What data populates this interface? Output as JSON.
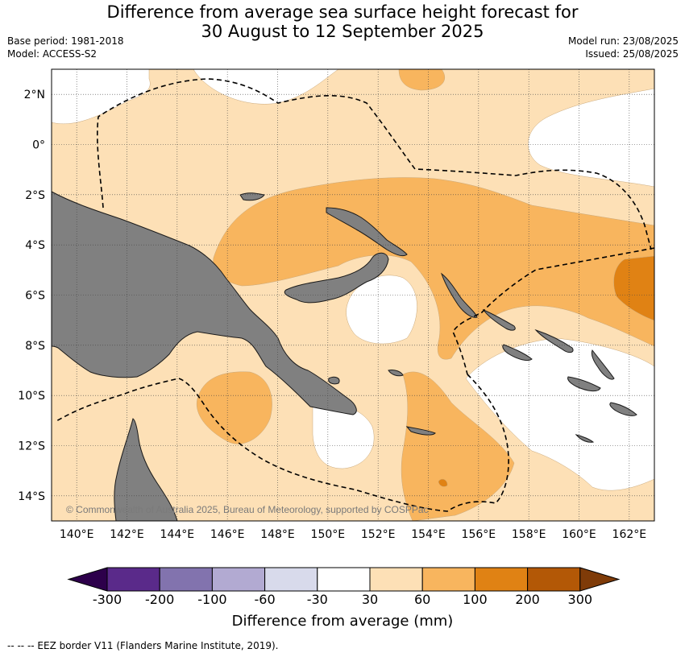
{
  "header": {
    "title_line1": "Difference from average sea surface height forecast for",
    "title_line2": "30 August to 12 September 2025",
    "base_period": "Base period: 1981-2018",
    "model": "Model: ACCESS-S2",
    "model_run": "Model run: 23/08/2025",
    "issued": "Issued: 25/08/2025"
  },
  "map": {
    "lon_range": [
      139,
      163
    ],
    "lat_range": [
      -15,
      3
    ],
    "lat_ticks": [
      "2°N",
      "0°",
      "2°S",
      "4°S",
      "6°S",
      "8°S",
      "10°S",
      "12°S",
      "14°S"
    ],
    "lon_ticks": [
      "140°E",
      "142°E",
      "144°E",
      "146°E",
      "148°E",
      "150°E",
      "152°E",
      "154°E",
      "156°E",
      "158°E",
      "160°E",
      "162°E"
    ],
    "grid": true,
    "copyright": "© Commonwealth of Australia 2025, Bureau of Meteorology, supported by COSPPac",
    "land_color": "#808080",
    "ocean_base_color": "#fde0b6"
  },
  "colorbar": {
    "title": "Difference from average (mm)",
    "labels": [
      "-300",
      "-200",
      "-100",
      "-60",
      "-30",
      "30",
      "60",
      "100",
      "200",
      "300"
    ],
    "colors": [
      "#5a2a8a",
      "#8273ae",
      "#b2aad2",
      "#d8daeb",
      "#ffffff",
      "#fde0b6",
      "#f8b55e",
      "#e08214",
      "#b35806"
    ],
    "low_extend_color": "#2d004b",
    "high_extend_color": "#7f3b08"
  },
  "footnote": "-- -- -- EEZ border V11 (Flanders Marine Institute, 2019)."
}
